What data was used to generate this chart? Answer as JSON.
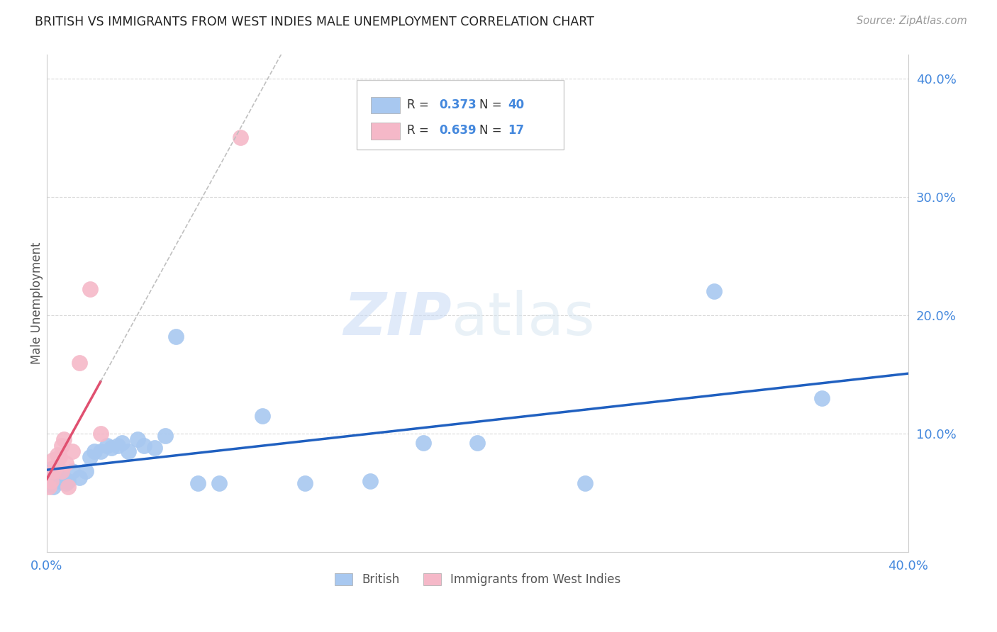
{
  "title": "BRITISH VS IMMIGRANTS FROM WEST INDIES MALE UNEMPLOYMENT CORRELATION CHART",
  "source": "Source: ZipAtlas.com",
  "ylabel": "Male Unemployment",
  "watermark_zip": "ZIP",
  "watermark_atlas": "atlas",
  "xlim": [
    0.0,
    0.4
  ],
  "ylim": [
    0.0,
    0.42
  ],
  "british_R": 0.373,
  "british_N": 40,
  "wi_R": 0.639,
  "wi_N": 17,
  "british_color": "#a8c8f0",
  "wi_color": "#f5b8c8",
  "trendline_british_color": "#2060c0",
  "trendline_wi_color": "#e05070",
  "background_color": "#ffffff",
  "grid_color": "#d8d8d8",
  "british_x": [
    0.001,
    0.002,
    0.002,
    0.003,
    0.003,
    0.004,
    0.005,
    0.005,
    0.006,
    0.006,
    0.007,
    0.008,
    0.009,
    0.01,
    0.012,
    0.015,
    0.018,
    0.02,
    0.022,
    0.025,
    0.028,
    0.03,
    0.033,
    0.035,
    0.038,
    0.042,
    0.045,
    0.05,
    0.055,
    0.06,
    0.07,
    0.08,
    0.1,
    0.12,
    0.15,
    0.175,
    0.2,
    0.25,
    0.31,
    0.36
  ],
  "british_y": [
    0.063,
    0.058,
    0.07,
    0.062,
    0.055,
    0.06,
    0.065,
    0.072,
    0.06,
    0.068,
    0.063,
    0.062,
    0.058,
    0.06,
    0.068,
    0.063,
    0.068,
    0.08,
    0.085,
    0.085,
    0.09,
    0.088,
    0.09,
    0.092,
    0.085,
    0.095,
    0.09,
    0.088,
    0.098,
    0.182,
    0.058,
    0.058,
    0.115,
    0.058,
    0.06,
    0.092,
    0.092,
    0.058,
    0.22,
    0.13
  ],
  "wi_x": [
    0.001,
    0.002,
    0.003,
    0.003,
    0.004,
    0.005,
    0.006,
    0.007,
    0.007,
    0.008,
    0.009,
    0.01,
    0.012,
    0.015,
    0.02,
    0.025,
    0.09
  ],
  "wi_y": [
    0.055,
    0.06,
    0.068,
    0.078,
    0.072,
    0.082,
    0.08,
    0.068,
    0.09,
    0.095,
    0.075,
    0.055,
    0.085,
    0.16,
    0.222,
    0.1,
    0.35
  ],
  "wi_trendline_x0": 0.0,
  "wi_trendline_x1": 0.025,
  "wi_trendline_dash_x1": 0.3
}
